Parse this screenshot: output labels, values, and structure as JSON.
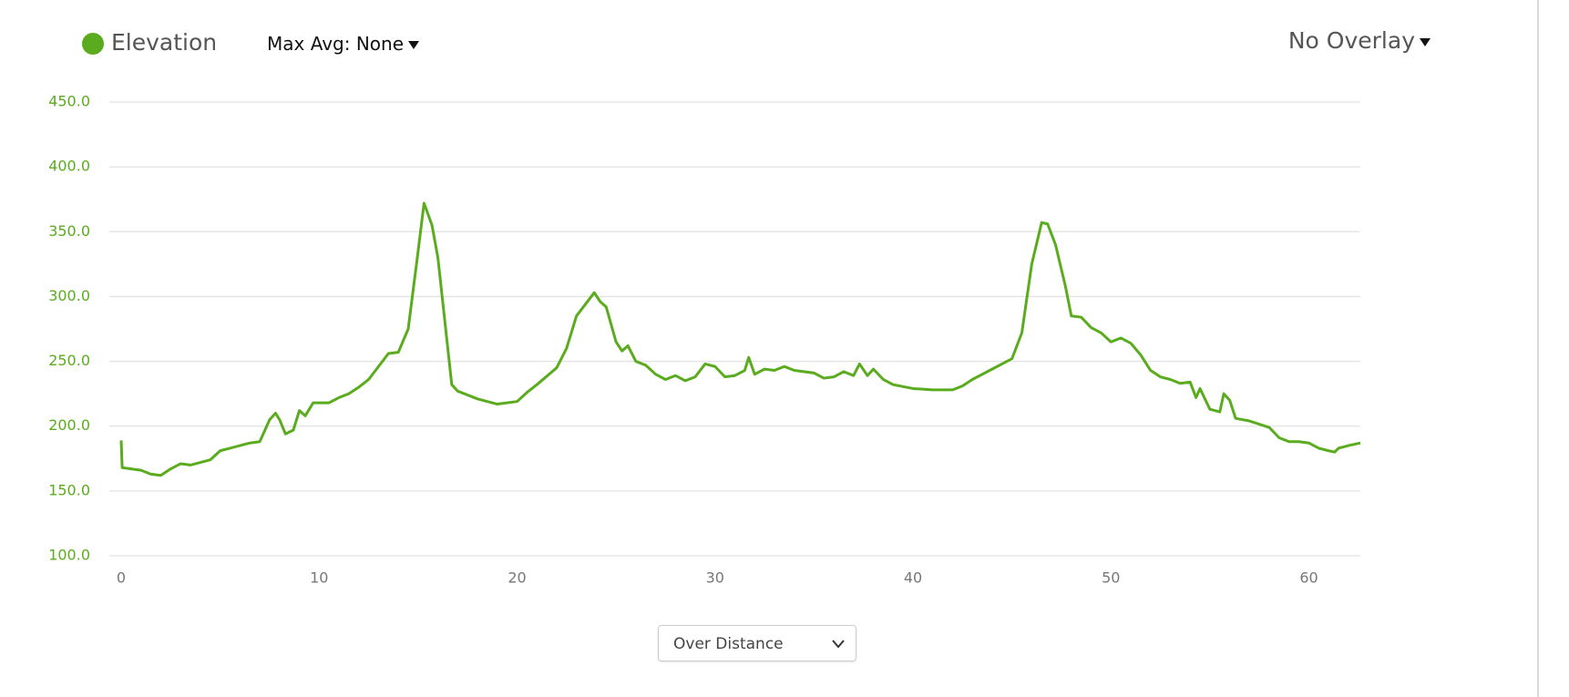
{
  "chart_data": {
    "type": "line",
    "series": [
      {
        "name": "Elevation",
        "color": "#5aac1e",
        "values": [
          189,
          168,
          167,
          166,
          163,
          162,
          167,
          171,
          170,
          172,
          174,
          181,
          183,
          185,
          187,
          188,
          205,
          210,
          205,
          194,
          197,
          212,
          208,
          218,
          218,
          218,
          222,
          225,
          230,
          236,
          246,
          256,
          257,
          275,
          335,
          372,
          355,
          330,
          260,
          232,
          227,
          221,
          217,
          219,
          226,
          232,
          245,
          260,
          285,
          295,
          303,
          296,
          292,
          265,
          258,
          262,
          250,
          247,
          240,
          236,
          239,
          235,
          238,
          248,
          246,
          238,
          239,
          243,
          253,
          240,
          244,
          243,
          246,
          243,
          241,
          237,
          238,
          242,
          239,
          248,
          239,
          244,
          236,
          232,
          229,
          228,
          228,
          231,
          236,
          244,
          252,
          272,
          325,
          357,
          356,
          340,
          308,
          285,
          284,
          276,
          272,
          265,
          268,
          264,
          255,
          243,
          238,
          236,
          233,
          234,
          222,
          229,
          213,
          211,
          225,
          220,
          206,
          204,
          199,
          191,
          188,
          188,
          187,
          183,
          181,
          180,
          183,
          185,
          187
        ]
      }
    ],
    "x": [
      0,
      0.05,
      0.5,
      1,
      1.5,
      2,
      2.5,
      3,
      3.5,
      4,
      4.5,
      5,
      5.5,
      6,
      6.5,
      7,
      7.5,
      7.8,
      8,
      8.3,
      8.7,
      9,
      9.3,
      9.7,
      10,
      10.5,
      11,
      11.5,
      12,
      12.5,
      13,
      13.5,
      14,
      14.5,
      15,
      15.3,
      15.7,
      16,
      16.5,
      16.7,
      17,
      18,
      19,
      20,
      20.5,
      21,
      22,
      22.5,
      23,
      23.5,
      23.9,
      24.2,
      24.5,
      25,
      25.3,
      25.6,
      26,
      26.5,
      27,
      27.5,
      28,
      28.5,
      29,
      29.5,
      30,
      30.5,
      31,
      31.5,
      31.7,
      32,
      32.5,
      33,
      33.5,
      34,
      35,
      35.5,
      36,
      36.5,
      37,
      37.3,
      37.7,
      38,
      38.5,
      39,
      40,
      41,
      42,
      42.5,
      43,
      44,
      45,
      45.5,
      46,
      46.5,
      46.8,
      47.2,
      47.7,
      48,
      48.5,
      49,
      49.5,
      50,
      50.5,
      51,
      51.5,
      52,
      52.5,
      53,
      53.5,
      54,
      54.3,
      54.5,
      55,
      55.5,
      55.7,
      56,
      56.3,
      57,
      58,
      58.5,
      59,
      59.5,
      60,
      60.5,
      61,
      61.3,
      61.5,
      62,
      62.6
    ],
    "xlim": [
      0,
      62.6
    ],
    "xticks": [
      0,
      10,
      20,
      30,
      40,
      50,
      60
    ],
    "ylim": [
      100,
      450
    ],
    "yticks": [
      {
        "value": 100,
        "label": "100.0"
      },
      {
        "value": 150,
        "label": "150.0"
      },
      {
        "value": 200,
        "label": "200.0"
      },
      {
        "value": 250,
        "label": "250.0"
      },
      {
        "value": 300,
        "label": "300.0"
      },
      {
        "value": 350,
        "label": "350.0"
      },
      {
        "value": 400,
        "label": "400.0"
      },
      {
        "value": 450,
        "label": "450.0"
      }
    ],
    "grid": true,
    "controls": {
      "max_avg": "Max Avg: None",
      "overlay": "No Overlay",
      "x_mode": "Over Distance"
    }
  }
}
